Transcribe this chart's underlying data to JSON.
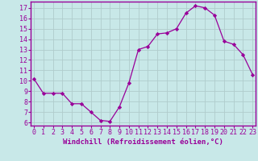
{
  "x": [
    0,
    1,
    2,
    3,
    4,
    5,
    6,
    7,
    8,
    9,
    10,
    11,
    12,
    13,
    14,
    15,
    16,
    17,
    18,
    19,
    20,
    21,
    22,
    23
  ],
  "y": [
    10.2,
    8.8,
    8.8,
    8.8,
    7.8,
    7.8,
    7.0,
    6.2,
    6.1,
    7.5,
    9.8,
    13.0,
    13.3,
    14.5,
    14.6,
    15.0,
    16.5,
    17.2,
    17.0,
    16.3,
    13.8,
    13.5,
    12.5,
    10.6
  ],
  "line_color": "#990099",
  "marker": "D",
  "marker_size": 2.2,
  "linewidth": 0.9,
  "xlabel": "Windchill (Refroidissement éolien,°C)",
  "xlabel_color": "#990099",
  "yticks": [
    6,
    7,
    8,
    9,
    10,
    11,
    12,
    13,
    14,
    15,
    16,
    17
  ],
  "xticks": [
    0,
    1,
    2,
    3,
    4,
    5,
    6,
    7,
    8,
    9,
    10,
    11,
    12,
    13,
    14,
    15,
    16,
    17,
    18,
    19,
    20,
    21,
    22,
    23
  ],
  "bg_color": "#c8e8e8",
  "grid_color": "#b0cccc",
  "spine_color": "#990099",
  "tick_label_color": "#990099",
  "xlabel_fontsize": 6.5,
  "tick_fontsize": 6.0,
  "ylim_low": 5.7,
  "ylim_high": 17.6,
  "xlim_low": -0.3,
  "xlim_high": 23.3
}
